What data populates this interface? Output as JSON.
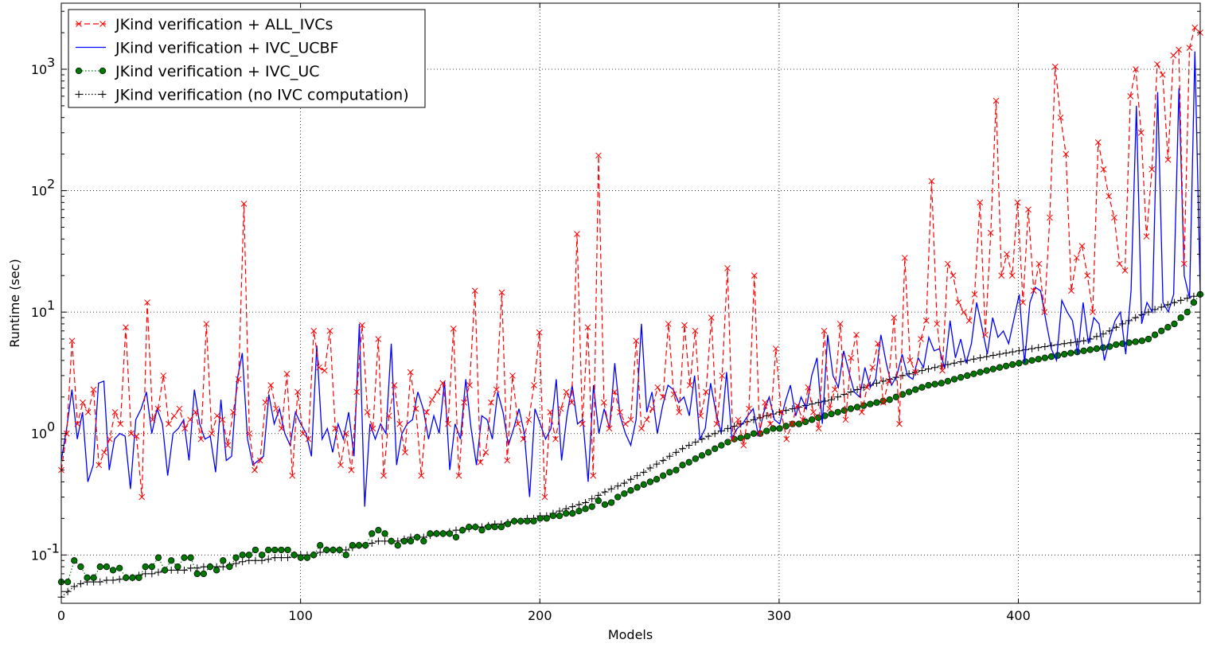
{
  "chart_data": {
    "type": "line",
    "title": "",
    "xlabel": "Models",
    "ylabel": "Runtime (sec)",
    "xlim": [
      0,
      476
    ],
    "ylim": [
      0.04,
      3500
    ],
    "yscale": "log",
    "grid": true,
    "legend_position": "top-left",
    "x_ticks": [
      0,
      100,
      200,
      300,
      400
    ],
    "x_tick_labels": [
      "0",
      "100",
      "200",
      "300",
      "400"
    ],
    "y_ticks": [
      0.1,
      1,
      10,
      100,
      1000
    ],
    "y_tick_labels": [
      "10",
      "10",
      "10",
      "10",
      "10"
    ],
    "y_tick_exponents": [
      "-1",
      "0",
      "1",
      "2",
      "3"
    ],
    "x_step": 4,
    "series": [
      {
        "name": "JKind verification + ALL_IVCs",
        "color": "#ff0000",
        "style": "dashed-x",
        "values": [
          0.5,
          1.0,
          5.8,
          1.2,
          1.8,
          1.5,
          2.3,
          0.55,
          0.7,
          0.9,
          1.5,
          1.2,
          7.5,
          1.0,
          0.95,
          0.3,
          12.0,
          1.3,
          1.6,
          3.0,
          1.2,
          1.4,
          1.6,
          1.1,
          1.3,
          1.5,
          0.9,
          8.0,
          1.0,
          1.4,
          1.3,
          0.8,
          1.5,
          2.8,
          78.0,
          1.0,
          0.5,
          0.6,
          1.8,
          2.5,
          1.6,
          1.1,
          3.1,
          0.45,
          2.2,
          1.0,
          0.9,
          7.0,
          3.5,
          3.3,
          7.0,
          1.1,
          0.55,
          1.0,
          0.5,
          2.2,
          7.8,
          1.5,
          1.1,
          6.0,
          0.45,
          1.4,
          2.5,
          1.2,
          0.7,
          3.2,
          1.6,
          0.45,
          1.5,
          1.9,
          2.2,
          2.6,
          1.2,
          7.3,
          0.45,
          1.8,
          2.5,
          15.0,
          0.58,
          0.7,
          1.8,
          2.3,
          14.5,
          0.6,
          3.0,
          1.2,
          0.9,
          1.3,
          2.5,
          6.8,
          0.3,
          1.5,
          0.9,
          1.6,
          2.2,
          1.8,
          44.0,
          1.2,
          7.5,
          0.45,
          195.0,
          1.8,
          1.1,
          2.2,
          1.5,
          1.2,
          1.3,
          5.8,
          1.1,
          1.3,
          1.6,
          2.4,
          2.0,
          8.0,
          2.1,
          1.5,
          7.8,
          2.5,
          7.0,
          1.4,
          2.2,
          9.0,
          1.2,
          3.0,
          23.0,
          0.9,
          1.3,
          0.8,
          1.6,
          20.0,
          1.0,
          1.8,
          1.2,
          5.0,
          1.5,
          0.9,
          1.2,
          1.7,
          1.3,
          2.4,
          1.5,
          1.1,
          7.0,
          1.6,
          2.3,
          8.0,
          1.3,
          4.2,
          6.5,
          1.5,
          2.4,
          3.5,
          5.5,
          1.8,
          2.7,
          9.0,
          1.2,
          28.0,
          4.0,
          3.2,
          6.0,
          8.5,
          120.0,
          8.0,
          3.3,
          25.0,
          20.0,
          12.0,
          10.0,
          8.5,
          14.0,
          80.0,
          6.5,
          45.0,
          550.0,
          20.0,
          30.0,
          20.0,
          80.0,
          12.0,
          70.0,
          15.0,
          25.0,
          10.0,
          60.0,
          1050.0,
          400.0,
          200.0,
          15.0,
          28.0,
          35.0,
          20.0,
          10.0,
          250.0,
          150.0,
          90.0,
          60.0,
          25.0,
          22.0,
          600.0,
          1000.0,
          300.0,
          42.0,
          150.0,
          1100.0,
          900.0,
          180.0,
          1300.0,
          1450.0,
          25.0,
          1500.0,
          2200.0,
          2000.0
        ]
      },
      {
        "name": "JKind verification + IVC_UCBF",
        "color": "#0000ff",
        "style": "solid",
        "values": [
          0.6,
          1.1,
          2.3,
          0.9,
          1.5,
          0.4,
          0.55,
          2.6,
          2.7,
          0.5,
          0.9,
          1.0,
          0.95,
          0.35,
          1.3,
          1.6,
          2.2,
          1.0,
          1.6,
          1.2,
          0.45,
          1.0,
          1.1,
          1.3,
          0.6,
          2.3,
          1.2,
          0.9,
          0.95,
          0.48,
          1.9,
          0.6,
          0.65,
          2.7,
          4.6,
          0.9,
          0.55,
          0.6,
          0.65,
          2.1,
          1.2,
          1.6,
          1.0,
          0.8,
          1.5,
          1.2,
          1.0,
          0.65,
          5.3,
          0.9,
          1.1,
          0.7,
          1.2,
          0.9,
          1.5,
          0.65,
          8.0,
          0.25,
          1.2,
          0.9,
          1.2,
          1.0,
          5.5,
          0.55,
          1.0,
          1.2,
          1.3,
          2.2,
          1.6,
          0.9,
          1.4,
          1.0,
          2.7,
          0.5,
          1.2,
          0.9,
          2.8,
          1.1,
          0.55,
          1.4,
          1.3,
          0.9,
          2.2,
          1.5,
          0.8,
          1.1,
          1.6,
          1.0,
          0.3,
          1.6,
          1.2,
          0.9,
          1.1,
          2.8,
          0.6,
          1.4,
          2.5,
          1.2,
          1.3,
          0.4,
          2.5,
          1.0,
          1.6,
          1.1,
          3.8,
          1.4,
          1.0,
          0.8,
          1.3,
          8.0,
          1.5,
          2.2,
          1.0,
          1.7,
          2.5,
          2.3,
          1.8,
          2.0,
          1.4,
          3.0,
          0.9,
          1.1,
          2.6,
          1.5,
          1.0,
          3.2,
          0.9,
          1.1,
          1.2,
          1.4,
          1.6,
          0.95,
          1.5,
          2.0,
          1.3,
          1.2,
          1.8,
          2.5,
          1.4,
          2.0,
          1.6,
          3.0,
          4.2,
          1.2,
          6.5,
          3.0,
          2.4,
          4.8,
          3.2,
          2.2,
          2.0,
          3.5,
          2.4,
          2.8,
          6.5,
          3.8,
          2.5,
          3.0,
          4.5,
          3.0,
          2.8,
          4.2,
          3.5,
          6.2,
          4.8,
          5.0,
          3.4,
          8.5,
          4.2,
          6.0,
          3.8,
          5.5,
          12.0,
          7.5,
          4.5,
          9.0,
          6.2,
          7.0,
          5.5,
          8.8,
          14.0,
          3.8,
          12.0,
          16.0,
          15.0,
          8.5,
          5.0,
          4.0,
          12.5,
          10.0,
          8.5,
          4.5,
          12.0,
          5.5,
          9.0,
          8.0,
          4.0,
          6.0,
          8.5,
          10.0,
          4.5,
          15.0,
          500.0,
          8.0,
          12.0,
          10.0,
          650.0,
          12.0,
          10.0,
          14.0,
          700.0,
          20.0,
          13.0,
          1400.0,
          15.0
        ]
      },
      {
        "name": "JKind verification + IVC_UC",
        "color": "#007700",
        "style": "dotted-circle",
        "values": [
          0.06,
          0.06,
          0.09,
          0.08,
          0.065,
          0.065,
          0.08,
          0.08,
          0.075,
          0.078,
          0.065,
          0.065,
          0.065,
          0.08,
          0.08,
          0.095,
          0.075,
          0.09,
          0.08,
          0.095,
          0.095,
          0.07,
          0.07,
          0.08,
          0.075,
          0.09,
          0.08,
          0.095,
          0.1,
          0.1,
          0.11,
          0.1,
          0.11,
          0.11,
          0.11,
          0.11,
          0.1,
          0.095,
          0.095,
          0.1,
          0.12,
          0.11,
          0.11,
          0.11,
          0.1,
          0.12,
          0.12,
          0.12,
          0.15,
          0.16,
          0.15,
          0.13,
          0.12,
          0.13,
          0.13,
          0.14,
          0.13,
          0.15,
          0.15,
          0.15,
          0.15,
          0.14,
          0.16,
          0.17,
          0.17,
          0.16,
          0.17,
          0.17,
          0.17,
          0.18,
          0.19,
          0.19,
          0.19,
          0.19,
          0.2,
          0.2,
          0.21,
          0.21,
          0.22,
          0.22,
          0.23,
          0.24,
          0.25,
          0.28,
          0.26,
          0.27,
          0.3,
          0.32,
          0.34,
          0.36,
          0.38,
          0.4,
          0.42,
          0.45,
          0.48,
          0.5,
          0.55,
          0.58,
          0.62,
          0.66,
          0.7,
          0.75,
          0.8,
          0.85,
          0.9,
          0.92,
          0.95,
          1.0,
          1.0,
          1.05,
          1.1,
          1.1,
          1.15,
          1.2,
          1.2,
          1.25,
          1.3,
          1.35,
          1.4,
          1.45,
          1.5,
          1.55,
          1.6,
          1.65,
          1.7,
          1.75,
          1.8,
          1.85,
          1.9,
          2.0,
          2.1,
          2.2,
          2.3,
          2.4,
          2.5,
          2.55,
          2.6,
          2.7,
          2.8,
          2.9,
          3.0,
          3.1,
          3.2,
          3.3,
          3.4,
          3.5,
          3.6,
          3.7,
          3.8,
          3.9,
          4.0,
          4.1,
          4.2,
          4.3,
          4.4,
          4.5,
          4.6,
          4.7,
          4.8,
          4.9,
          5.0,
          5.1,
          5.2,
          5.4,
          5.5,
          5.6,
          5.7,
          5.8,
          6.0,
          6.5,
          7.0,
          7.5,
          8.0,
          9.0,
          10.0,
          12.0,
          14.0
        ]
      },
      {
        "name": "JKind verification (no IVC computation)",
        "color": "#000000",
        "style": "dotted-plus",
        "values": [
          0.045,
          0.05,
          0.055,
          0.058,
          0.06,
          0.06,
          0.06,
          0.062,
          0.062,
          0.063,
          0.065,
          0.065,
          0.068,
          0.07,
          0.07,
          0.072,
          0.075,
          0.075,
          0.075,
          0.075,
          0.078,
          0.078,
          0.08,
          0.08,
          0.08,
          0.08,
          0.082,
          0.085,
          0.088,
          0.09,
          0.09,
          0.09,
          0.092,
          0.095,
          0.095,
          0.095,
          0.1,
          0.1,
          0.1,
          0.1,
          0.105,
          0.11,
          0.11,
          0.11,
          0.11,
          0.115,
          0.12,
          0.12,
          0.125,
          0.13,
          0.13,
          0.13,
          0.13,
          0.135,
          0.14,
          0.14,
          0.14,
          0.145,
          0.15,
          0.15,
          0.155,
          0.16,
          0.16,
          0.165,
          0.17,
          0.17,
          0.175,
          0.18,
          0.18,
          0.185,
          0.19,
          0.19,
          0.2,
          0.2,
          0.21,
          0.21,
          0.22,
          0.23,
          0.24,
          0.25,
          0.26,
          0.27,
          0.29,
          0.31,
          0.33,
          0.35,
          0.37,
          0.39,
          0.42,
          0.45,
          0.48,
          0.52,
          0.56,
          0.6,
          0.65,
          0.7,
          0.75,
          0.8,
          0.85,
          0.9,
          0.95,
          1.0,
          1.05,
          1.1,
          1.15,
          1.2,
          1.25,
          1.3,
          1.35,
          1.4,
          1.45,
          1.5,
          1.55,
          1.6,
          1.65,
          1.7,
          1.75,
          1.8,
          1.85,
          1.9,
          2.0,
          2.1,
          2.2,
          2.3,
          2.4,
          2.5,
          2.6,
          2.7,
          2.8,
          2.9,
          3.0,
          3.1,
          3.2,
          3.3,
          3.4,
          3.5,
          3.6,
          3.7,
          3.8,
          3.9,
          4.0,
          4.1,
          4.2,
          4.3,
          4.4,
          4.5,
          4.6,
          4.7,
          4.8,
          4.9,
          5.0,
          5.1,
          5.2,
          5.3,
          5.4,
          5.5,
          5.6,
          5.7,
          5.8,
          6.0,
          6.3,
          6.6,
          7.0,
          7.5,
          8.0,
          8.5,
          9.0,
          9.5,
          10.0,
          10.5,
          11.0,
          11.5,
          12.0,
          12.5,
          13.0,
          13.5,
          14.0
        ]
      }
    ]
  }
}
